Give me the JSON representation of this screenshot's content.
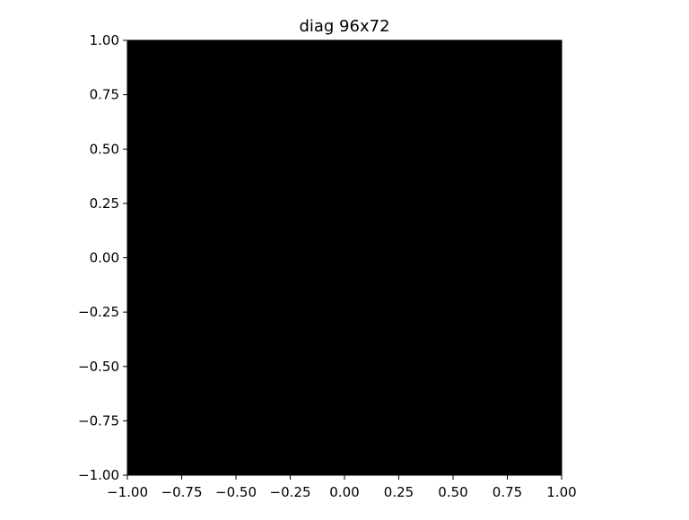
{
  "chart_data": {
    "type": "heatmap",
    "title": "diag 96x72",
    "xlabel": "",
    "ylabel": "",
    "xlim": [
      -1.0,
      1.0
    ],
    "ylim": [
      -1.0,
      1.0
    ],
    "x_ticks": [
      "−1.00",
      "−0.75",
      "−0.50",
      "−0.25",
      "0.00",
      "0.25",
      "0.50",
      "0.75",
      "1.00"
    ],
    "y_ticks": [
      "−1.00",
      "−0.75",
      "−0.50",
      "−0.25",
      "0.00",
      "0.25",
      "0.50",
      "0.75",
      "1.00"
    ],
    "x_tick_values": [
      -1.0,
      -0.75,
      -0.5,
      -0.25,
      0.0,
      0.25,
      0.5,
      0.75,
      1.0
    ],
    "y_tick_values": [
      -1.0,
      -0.75,
      -0.5,
      -0.25,
      0.0,
      0.25,
      0.5,
      0.75,
      1.0
    ],
    "image_fill": "#000000",
    "grid": false,
    "legend": false
  }
}
